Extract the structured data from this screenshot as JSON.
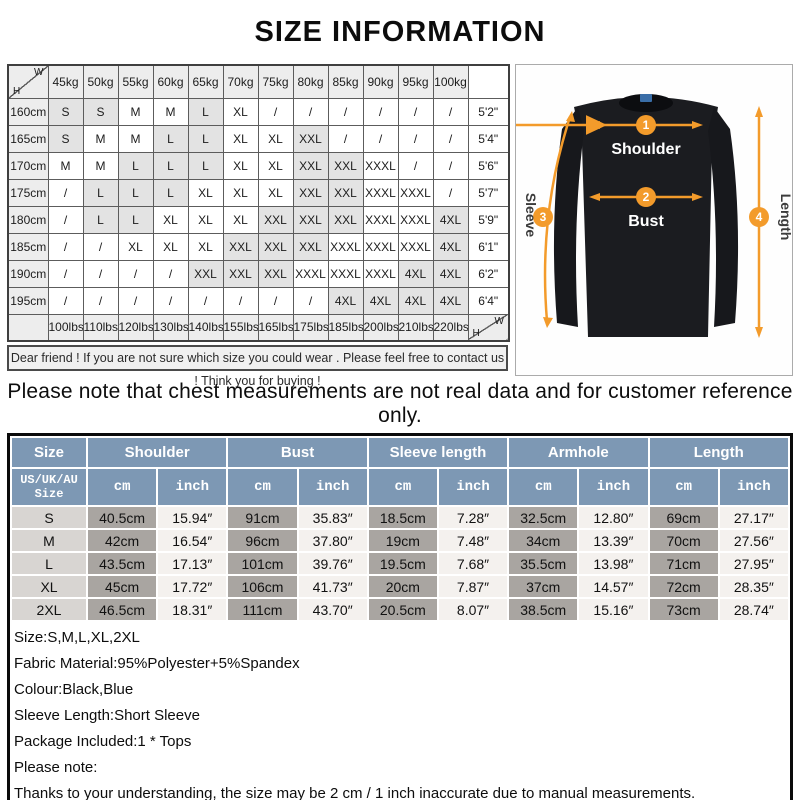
{
  "title": "SIZE INFORMATION",
  "matrix": {
    "corner_w": "W",
    "corner_h": "H",
    "weights": [
      "45kg",
      "50kg",
      "55kg",
      "60kg",
      "65kg",
      "70kg",
      "75kg",
      "80kg",
      "85kg",
      "90kg",
      "95kg",
      "100kg"
    ],
    "rows": [
      {
        "height": "160cm",
        "cells": [
          "S",
          "S",
          "M",
          "M",
          "L",
          "XL",
          "/",
          "/",
          "/",
          "/",
          "/",
          "/"
        ],
        "feet": "5'2\""
      },
      {
        "height": "165cm",
        "cells": [
          "S",
          "M",
          "M",
          "L",
          "L",
          "XL",
          "XL",
          "XXL",
          "/",
          "/",
          "/",
          "/"
        ],
        "feet": "5'4\""
      },
      {
        "height": "170cm",
        "cells": [
          "M",
          "M",
          "L",
          "L",
          "L",
          "XL",
          "XL",
          "XXL",
          "XXL",
          "XXXL",
          "/",
          "/"
        ],
        "feet": "5'6\""
      },
      {
        "height": "175cm",
        "cells": [
          "/",
          "L",
          "L",
          "L",
          "XL",
          "XL",
          "XL",
          "XXL",
          "XXL",
          "XXXL",
          "XXXL",
          "/"
        ],
        "feet": "5'7\""
      },
      {
        "height": "180cm",
        "cells": [
          "/",
          "L",
          "L",
          "XL",
          "XL",
          "XL",
          "XXL",
          "XXL",
          "XXL",
          "XXXL",
          "XXXL",
          "4XL"
        ],
        "feet": "5'9\""
      },
      {
        "height": "185cm",
        "cells": [
          "/",
          "/",
          "XL",
          "XL",
          "XL",
          "XXL",
          "XXL",
          "XXL",
          "XXXL",
          "XXXL",
          "XXXL",
          "4XL"
        ],
        "feet": "6'1\""
      },
      {
        "height": "190cm",
        "cells": [
          "/",
          "/",
          "/",
          "/",
          "XXL",
          "XXL",
          "XXL",
          "XXXL",
          "XXXL",
          "XXXL",
          "4XL",
          "4XL"
        ],
        "feet": "6'2\""
      },
      {
        "height": "195cm",
        "cells": [
          "/",
          "/",
          "/",
          "/",
          "/",
          "/",
          "/",
          "/",
          "4XL",
          "4XL",
          "4XL",
          "4XL"
        ],
        "feet": "6'4\""
      }
    ],
    "lbs": [
      "100lbs",
      "110lbs",
      "120lbs",
      "130lbs",
      "140lbs",
      "155lbs",
      "165lbs",
      "175lbs",
      "185lbs",
      "200lbs",
      "210lbs",
      "220lbs"
    ],
    "shaded_values": [
      "S",
      "L",
      "XXL",
      "4XL"
    ],
    "note": "Dear friend ! If you are not sure which size you could wear . Please feel free to contact us ! Think you for buying !"
  },
  "diagram": {
    "shoulder_label": "Shoulder",
    "bust_label": "Bust",
    "sleeve_label": "Sleeve",
    "length_label": "Length",
    "num1": "1",
    "num2": "2",
    "num3": "3",
    "num4": "4",
    "arrow_color": "#F39B2B",
    "shirt_color": "#1b1c20"
  },
  "notice": "Please note that chest measurements  are not real data and for customer reference only.",
  "size_table": {
    "groups": [
      "Size",
      "Shoulder",
      "Bust",
      "Sleeve length",
      "Armhole",
      "Length"
    ],
    "sub_size_line1": "US/UK/AU",
    "sub_size_line2": "Size",
    "sub_cm": "cm",
    "sub_inch": "inch",
    "rows": [
      {
        "size": "S",
        "values": [
          "40.5cm",
          "15.94″",
          "91cm",
          "35.83″",
          "18.5cm",
          "7.28″",
          "32.5cm",
          "12.80″",
          "69cm",
          "27.17″"
        ]
      },
      {
        "size": "M",
        "values": [
          "42cm",
          "16.54″",
          "96cm",
          "37.80″",
          "19cm",
          "7.48″",
          "34cm",
          "13.39″",
          "70cm",
          "27.56″"
        ]
      },
      {
        "size": "L",
        "values": [
          "43.5cm",
          "17.13″",
          "101cm",
          "39.76″",
          "19.5cm",
          "7.68″",
          "35.5cm",
          "13.98″",
          "71cm",
          "27.95″"
        ]
      },
      {
        "size": "XL",
        "values": [
          "45cm",
          "17.72″",
          "106cm",
          "41.73″",
          "20cm",
          "7.87″",
          "37cm",
          "14.57″",
          "72cm",
          "28.35″"
        ]
      },
      {
        "size": "2XL",
        "values": [
          "46.5cm",
          "18.31″",
          "111cm",
          "43.70″",
          "20.5cm",
          "8.07″",
          "38.5cm",
          "15.16″",
          "73cm",
          "28.74″"
        ]
      }
    ]
  },
  "details": [
    "Size:S,M,L,XL,2XL",
    "Fabric Material:95%Polyester+5%Spandex",
    "Colour:Black,Blue",
    "Sleeve Length:Short Sleeve",
    "Package Included:1 * Tops",
    "Please note:",
    "Thanks to your understanding, the size may be 2 cm / 1 inch inaccurate due to manual measurements."
  ]
}
